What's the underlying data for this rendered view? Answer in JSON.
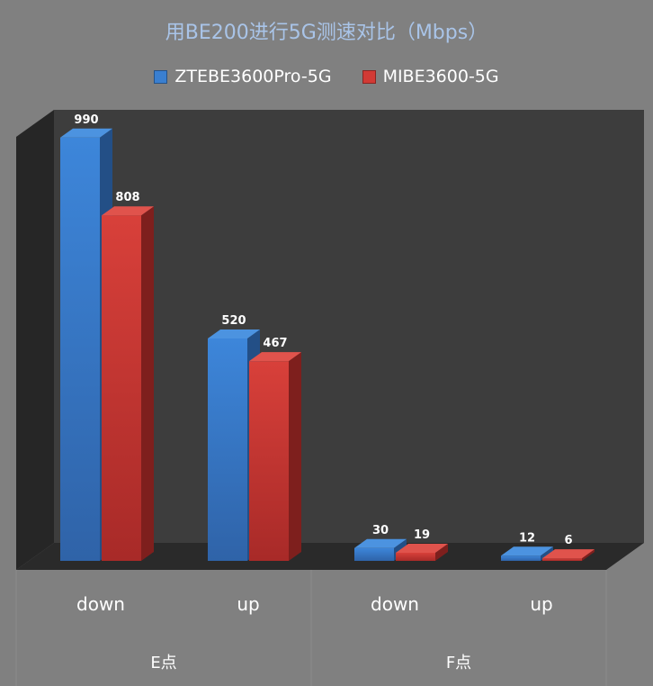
{
  "chart_data": {
    "type": "bar",
    "title": "用BE200进行5G测速对比（Mbps）",
    "groups": [
      {
        "label": "E点",
        "categories": [
          "down",
          "up"
        ]
      },
      {
        "label": "F点",
        "categories": [
          "down",
          "up"
        ]
      }
    ],
    "categories": [
      "down",
      "up",
      "down",
      "up"
    ],
    "series": [
      {
        "name": "ZTEBE3600Pro-5G",
        "color": "#3a7fd0",
        "values": [
          990,
          520,
          30,
          12
        ]
      },
      {
        "name": "MIBE3600-5G",
        "color": "#d23a35",
        "values": [
          808,
          467,
          19,
          6
        ]
      }
    ],
    "ylim": [
      0,
      1000
    ],
    "grid": false,
    "legend_position": "top",
    "three_d": true
  }
}
